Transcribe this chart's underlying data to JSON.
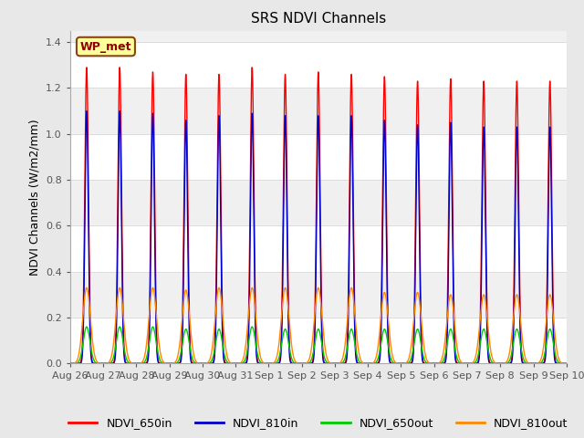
{
  "title": "SRS NDVI Channels",
  "ylabel": "NDVI Channels (W/m2/mm)",
  "xlabel": "",
  "station_label": "WP_met",
  "ylim": [
    0.0,
    1.45
  ],
  "yticks": [
    0.0,
    0.2,
    0.4,
    0.6,
    0.8,
    1.0,
    1.2,
    1.4
  ],
  "date_labels": [
    "Aug 26",
    "Aug 27",
    "Aug 28",
    "Aug 29",
    "Aug 30",
    "Aug 31",
    "Sep 1",
    "Sep 2",
    "Sep 3",
    "Sep 4",
    "Sep 5",
    "Sep 6",
    "Sep 7",
    "Sep 8",
    "Sep 9",
    "Sep 10"
  ],
  "n_days": 15,
  "colors": {
    "NDVI_650in": "#FF0000",
    "NDVI_810in": "#0000CC",
    "NDVI_650out": "#00CC00",
    "NDVI_810out": "#FF8800"
  },
  "peaks_650in": [
    1.29,
    1.29,
    1.27,
    1.26,
    1.26,
    1.29,
    1.26,
    1.27,
    1.26,
    1.25,
    1.23,
    1.24,
    1.23,
    1.23,
    1.23
  ],
  "peaks_810in": [
    1.1,
    1.1,
    1.09,
    1.06,
    1.08,
    1.09,
    1.08,
    1.08,
    1.08,
    1.06,
    1.04,
    1.05,
    1.03,
    1.03,
    1.03
  ],
  "peaks_650out": [
    0.16,
    0.16,
    0.16,
    0.15,
    0.15,
    0.16,
    0.15,
    0.15,
    0.15,
    0.15,
    0.15,
    0.15,
    0.15,
    0.15,
    0.15
  ],
  "peaks_810out": [
    0.33,
    0.33,
    0.33,
    0.32,
    0.33,
    0.33,
    0.33,
    0.33,
    0.33,
    0.31,
    0.31,
    0.3,
    0.3,
    0.3,
    0.3
  ],
  "background_color": "#E8E8E8",
  "plot_bg_color": "#F0F0F0",
  "grid_color": "#FFFFFF",
  "title_fontsize": 11,
  "label_fontsize": 9,
  "tick_fontsize": 8,
  "legend_fontsize": 9
}
